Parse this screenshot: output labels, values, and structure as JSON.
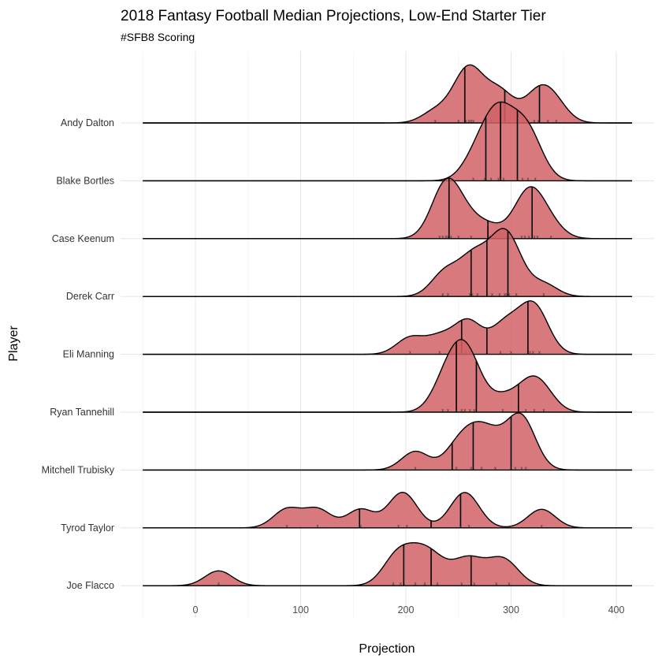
{
  "chart_data": {
    "type": "ridgeline",
    "title": "2018 Fantasy Football Median Projections, Low-End Starter Tier",
    "subtitle": "#SFB8 Scoring",
    "xlabel": "Projection",
    "ylabel": "Player",
    "xlim": [
      -50,
      415
    ],
    "x_ticks": [
      0,
      100,
      200,
      300,
      400
    ],
    "grid": true,
    "fill_color": "#d06266",
    "fill_opacity": 0.85,
    "series": [
      {
        "name": "Andy Dalton",
        "quantiles": [
          256,
          294,
          327
        ],
        "points": [
          228,
          250,
          257,
          260,
          262,
          264,
          281,
          290,
          294,
          322,
          326,
          335,
          343
        ]
      },
      {
        "name": "Blake Bortles",
        "quantiles": [
          276,
          290,
          306
        ],
        "points": [
          264,
          275,
          281,
          288,
          290,
          293,
          306,
          311,
          316,
          323
        ]
      },
      {
        "name": "Case Keenum",
        "quantiles": [
          241,
          278,
          320
        ],
        "points": [
          232,
          235,
          238,
          240,
          243,
          250,
          262,
          280,
          310,
          313,
          317,
          322,
          325,
          338
        ]
      },
      {
        "name": "Derek Carr",
        "quantiles": [
          262,
          277,
          297
        ],
        "points": [
          235,
          240,
          261,
          263,
          268,
          282,
          289,
          294,
          296,
          298,
          305,
          331
        ]
      },
      {
        "name": "Eli Manning",
        "quantiles": [
          253,
          277,
          316
        ],
        "points": [
          204,
          232,
          257,
          261,
          290,
          300,
          318,
          321,
          327
        ]
      },
      {
        "name": "Ryan Tannehill",
        "quantiles": [
          248,
          267,
          307
        ],
        "points": [
          235,
          240,
          248,
          253,
          256,
          261,
          265,
          292,
          314,
          322,
          331
        ]
      },
      {
        "name": "Mitchell Trubisky",
        "quantiles": [
          244,
          264,
          300
        ],
        "points": [
          209,
          248,
          262,
          272,
          285,
          304,
          310,
          314
        ]
      },
      {
        "name": "Tyrod Taylor",
        "quantiles": [
          156,
          224,
          252
        ],
        "points": [
          87,
          116,
          157,
          193,
          201,
          252,
          260,
          329
        ]
      },
      {
        "name": "Joe Flacco",
        "quantiles": [
          198,
          224,
          262
        ],
        "points": [
          22,
          188,
          195,
          209,
          218,
          230,
          253,
          265,
          286,
          298
        ]
      }
    ]
  }
}
